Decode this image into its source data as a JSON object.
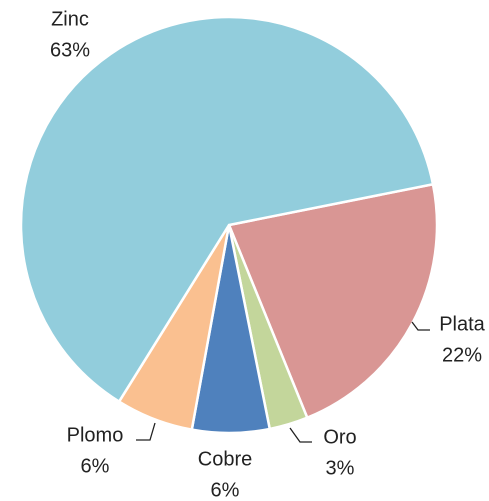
{
  "chart_data": {
    "type": "pie",
    "categories": [
      "Plata",
      "Oro",
      "Cobre",
      "Plomo",
      "Zinc"
    ],
    "values": [
      22,
      3,
      6,
      6,
      63
    ],
    "value_labels": [
      "22%",
      "3%",
      "6%",
      "6%",
      "63%"
    ],
    "colors": [
      "#d99694",
      "#c3d69b",
      "#4f81bd",
      "#fac090",
      "#92cddc"
    ]
  }
}
